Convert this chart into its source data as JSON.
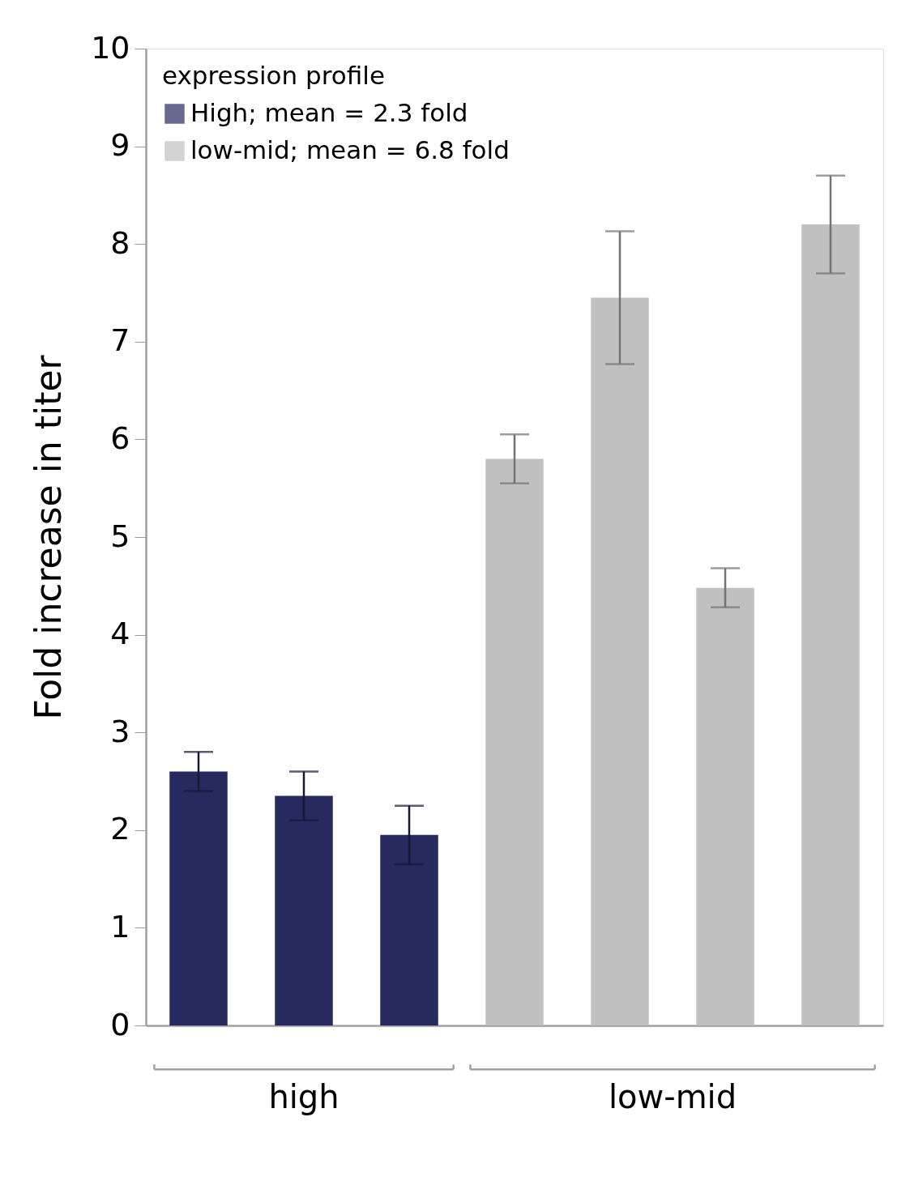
{
  "chart_data": {
    "type": "bar",
    "ylabel": "Fold increase in titer",
    "legend_title": "expression profile",
    "categories": [
      null,
      null,
      null,
      null,
      null,
      null,
      null
    ],
    "series": [
      {
        "name": "High;   mean = 2.3 fold",
        "color": "#262a5e",
        "values": [
          2.6,
          2.35,
          1.95,
          null,
          null,
          null,
          null
        ],
        "errors": [
          0.2,
          0.25,
          0.3,
          null,
          null,
          null,
          null
        ]
      },
      {
        "name": "low-mid;   mean = 6.8 fold",
        "color": "#c0c0c0",
        "values": [
          null,
          null,
          null,
          5.8,
          7.45,
          4.48,
          8.2
        ],
        "errors": [
          null,
          null,
          null,
          0.25,
          0.68,
          0.2,
          0.5
        ]
      }
    ],
    "ylim": [
      0,
      10
    ],
    "yticks": [
      0,
      1,
      2,
      3,
      4,
      5,
      6,
      7,
      8,
      9,
      10
    ],
    "grid": false,
    "legend": "top left",
    "annotations": [
      "high",
      "low-mid"
    ]
  }
}
